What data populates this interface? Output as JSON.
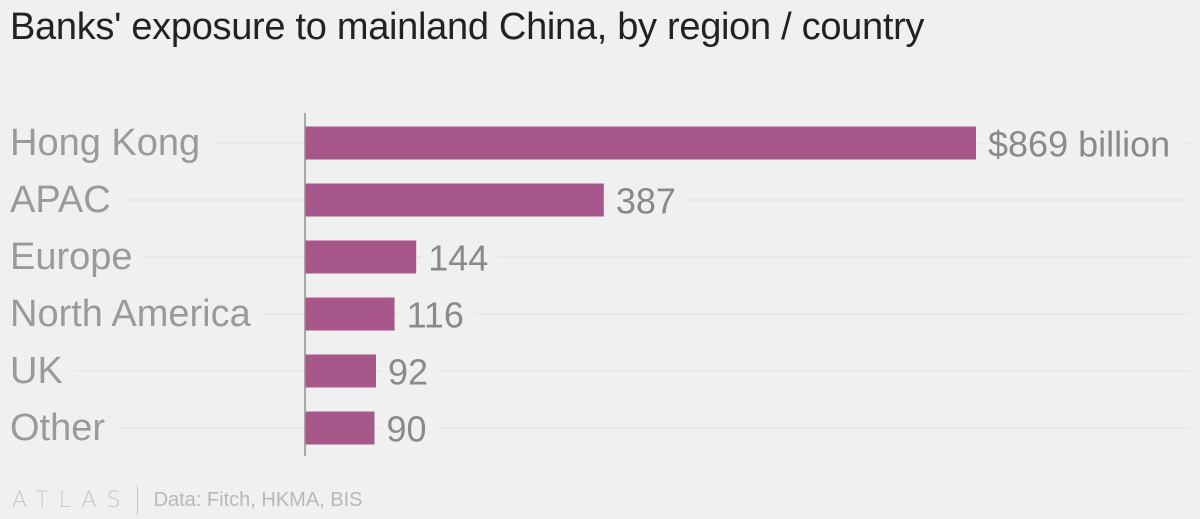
{
  "chart_data": {
    "type": "bar",
    "orientation": "horizontal",
    "title": "Banks' exposure to mainland China, by region / country",
    "categories": [
      "Hong Kong",
      "APAC",
      "Europe",
      "North America",
      "UK",
      "Other"
    ],
    "values": [
      869,
      387,
      144,
      116,
      92,
      90
    ],
    "value_labels": [
      "$869 billion",
      "387",
      "144",
      "116",
      "92",
      "90"
    ],
    "unit": "billion USD",
    "xlim": [
      0,
      869
    ],
    "xlabel": "",
    "ylabel": "",
    "grid": true,
    "bar_color": "#a8578a"
  },
  "footer": {
    "logo": "ATLAS",
    "source": "Data: Fitch, HKMA, BIS"
  }
}
